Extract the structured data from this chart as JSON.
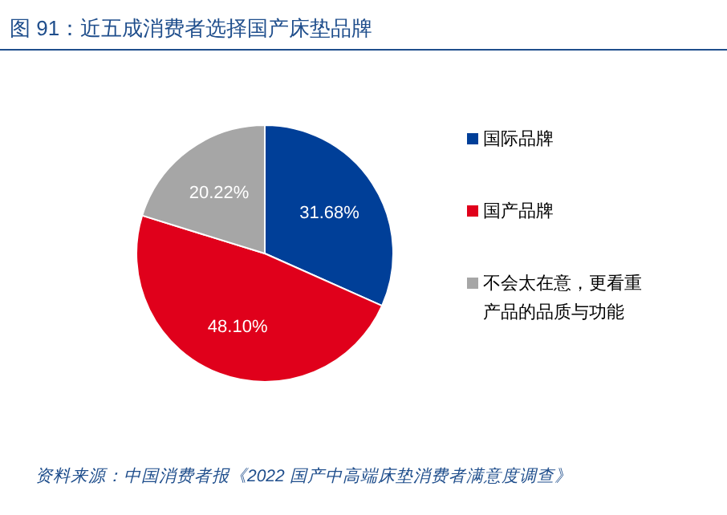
{
  "chart_data": {
    "type": "pie",
    "title": "图 91：近五成消费者选择国产床垫品牌",
    "categories": [
      "国际品牌",
      "国产品牌",
      "不会太在意，更看重产品的品质与功能"
    ],
    "values": [
      31.68,
      48.1,
      20.22
    ],
    "colors": [
      "#003f98",
      "#e0001b",
      "#a6a6a6"
    ],
    "value_labels": [
      "31.68%",
      "48.10%",
      "20.22%"
    ],
    "legend": "right",
    "annotations": [
      "资料来源：中国消费者报《2022 国产中高端床垫消费者满意度调查》"
    ]
  }
}
